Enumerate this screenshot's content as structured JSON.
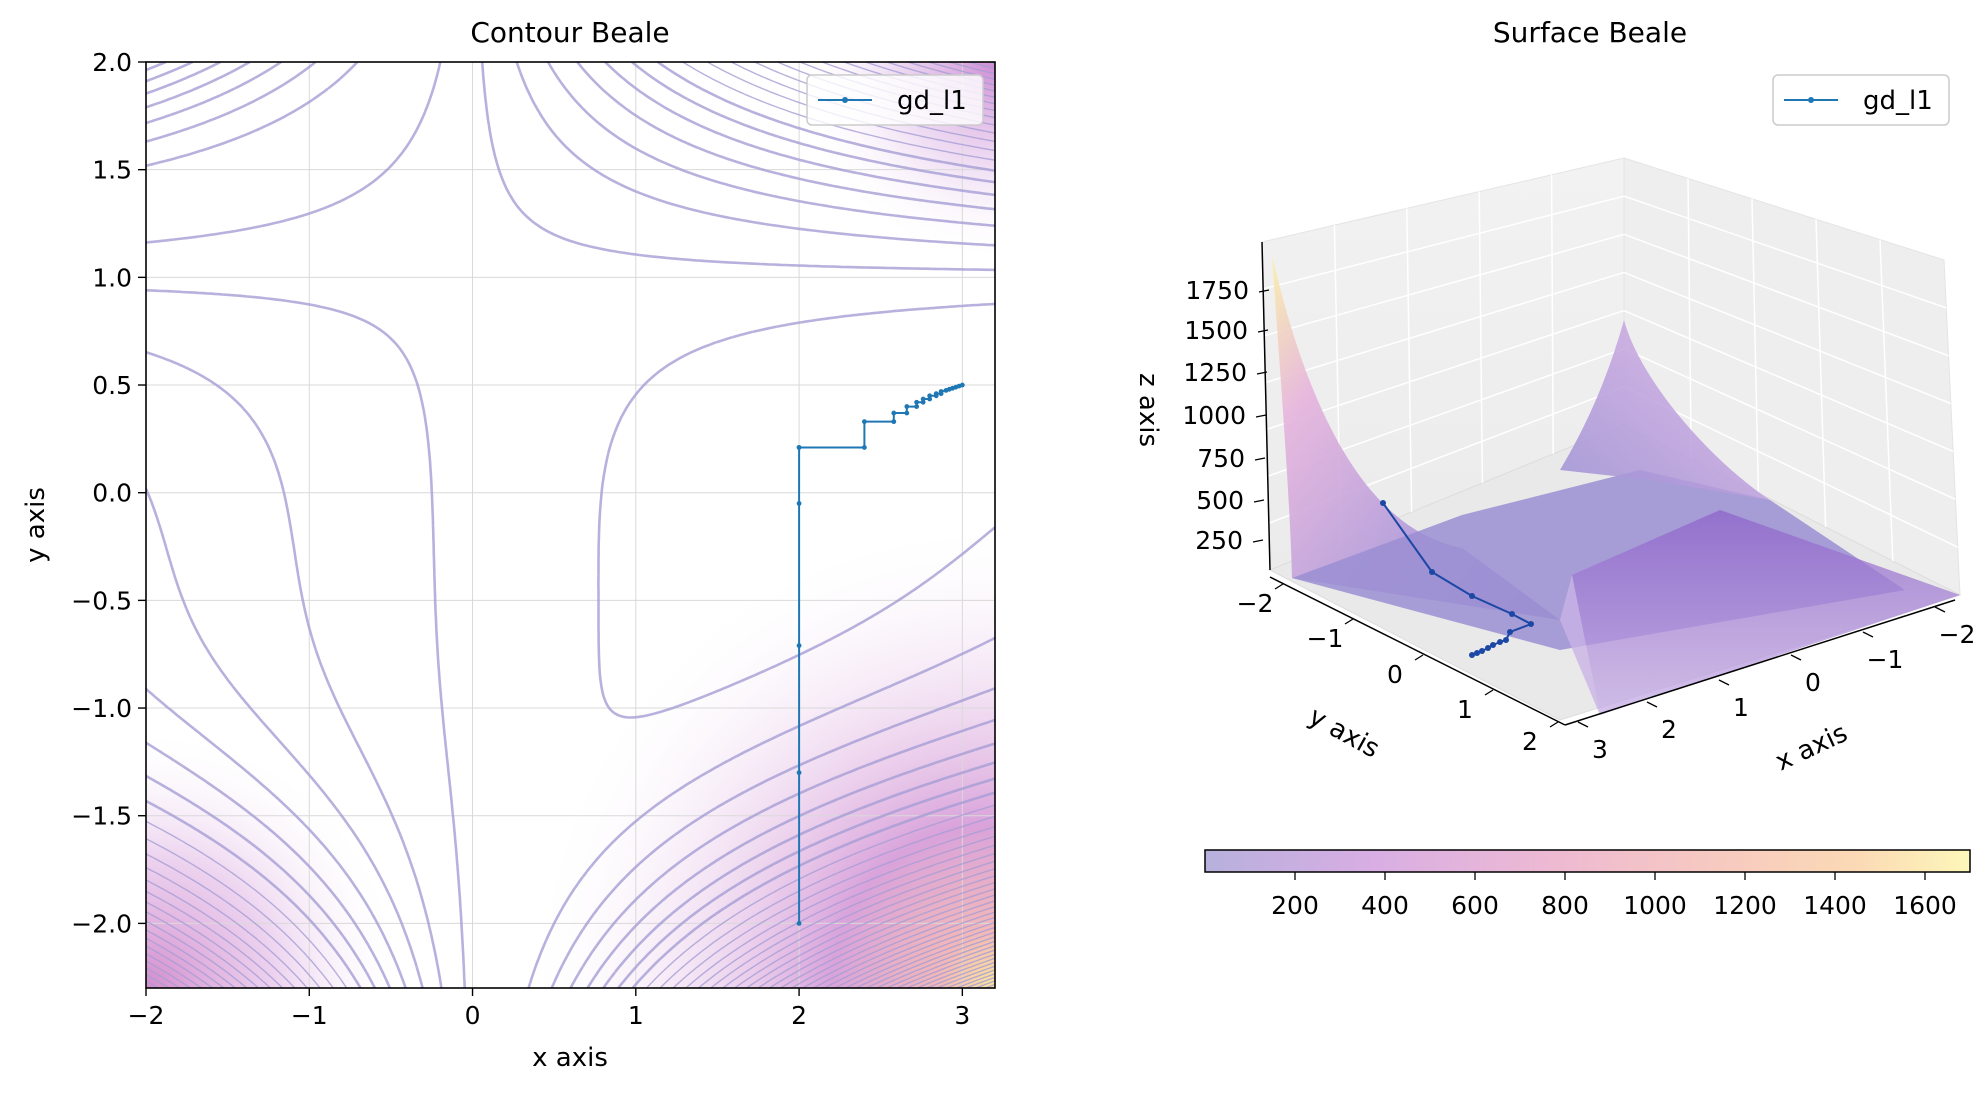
{
  "chart_data": [
    {
      "type": "contour",
      "title": "Contour Beale",
      "xlabel": "x axis",
      "ylabel": "y axis",
      "xlim": [
        -2,
        3.2
      ],
      "ylim": [
        -2.3,
        2.0
      ],
      "grid": true,
      "xticks": [
        -2,
        -1,
        0,
        1,
        2,
        3
      ],
      "xtick_labels": [
        "−2",
        "−1",
        "0",
        "1",
        "2",
        "3"
      ],
      "yticks": [
        -2.0,
        -1.5,
        -1.0,
        -0.5,
        0.0,
        0.5,
        1.0,
        1.5,
        2.0
      ],
      "ytick_labels": [
        "−2.0",
        "−1.5",
        "−1.0",
        "−0.5",
        "0.0",
        "0.5",
        "1.0",
        "1.5",
        "2.0"
      ],
      "legend": {
        "position": "top-right",
        "entries": [
          "gd_l1"
        ]
      },
      "series": [
        {
          "name": "gd_l1",
          "color": "#1f77b4",
          "x": [
            2.0,
            2.0,
            2.0,
            2.0,
            2.0,
            2.0,
            2.4,
            2.4,
            2.58,
            2.58,
            2.66,
            2.66,
            2.72,
            2.72,
            2.76,
            2.76,
            2.8,
            2.8,
            2.84,
            2.84,
            2.87,
            2.87,
            2.9,
            2.92,
            2.94,
            2.96,
            2.98,
            3.0
          ],
          "y": [
            -2.0,
            -1.3,
            -0.71,
            -0.05,
            0.21,
            0.21,
            0.21,
            0.33,
            0.33,
            0.37,
            0.37,
            0.4,
            0.4,
            0.42,
            0.42,
            0.435,
            0.435,
            0.45,
            0.45,
            0.46,
            0.46,
            0.47,
            0.475,
            0.48,
            0.485,
            0.49,
            0.495,
            0.5
          ]
        }
      ]
    },
    {
      "type": "surface3d",
      "title": "Surface Beale",
      "xlabel": "x axis",
      "ylabel": "y axis",
      "zlabel": "z axis",
      "xtick_labels": [
        "−2",
        "−1",
        "0",
        "1",
        "2",
        "3"
      ],
      "ytick_labels": [
        "−2",
        "−1",
        "0",
        "1",
        "2"
      ],
      "ztick_labels": [
        "250",
        "500",
        "750",
        "1000",
        "1250",
        "1500",
        "1750"
      ],
      "legend": {
        "position": "top-right",
        "entries": [
          "gd_l1"
        ]
      },
      "colorbar": {
        "range": [
          0,
          1700
        ],
        "ticks": [
          200,
          400,
          600,
          800,
          1000,
          1200,
          1400,
          1600
        ],
        "tick_labels": [
          "200",
          "400",
          "600",
          "800",
          "1000",
          "1200",
          "1400",
          "1600"
        ],
        "colors": [
          "#b7b0dd",
          "#d8aee4",
          "#edb9d3",
          "#f6c8c2",
          "#fbd9b5",
          "#fdf2b7"
        ]
      },
      "series": [
        {
          "name": "gd_l1",
          "color": "#1c47a5"
        }
      ]
    }
  ]
}
